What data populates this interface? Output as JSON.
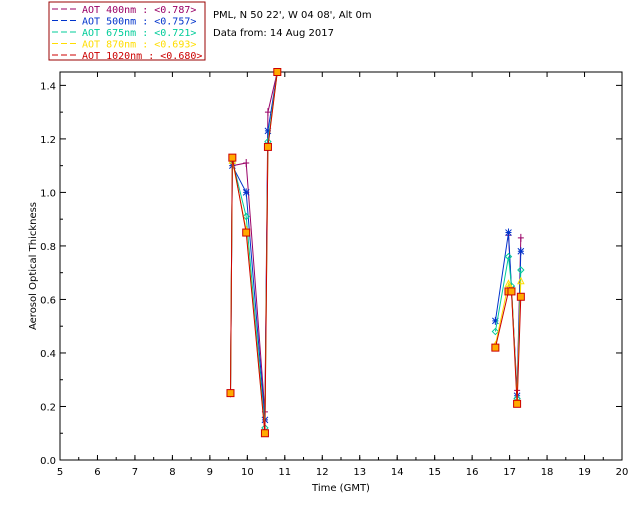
{
  "header": {
    "station": "PML, N 50 22', W 04 08', Alt 0m",
    "date_line": "Data from: 14 Aug 2017"
  },
  "chart_data": {
    "type": "line",
    "xlabel": "Time (GMT)",
    "ylabel": "Aerosol Optical Thickness",
    "xlim": [
      5,
      20
    ],
    "ylim": [
      0,
      1.45
    ],
    "x_ticks": [
      "5",
      "6",
      "7",
      "8",
      "9",
      "10",
      "11",
      "12",
      "13",
      "14",
      "15",
      "16",
      "17",
      "18",
      "19",
      "20"
    ],
    "y_ticks": [
      "0.0",
      "0.2",
      "0.4",
      "0.6",
      "0.8",
      "1.0",
      "1.2",
      "1.4"
    ],
    "legend_position": "top-left (outside)",
    "series": [
      {
        "name": "AOT  400nm : <0.787>",
        "color": "#990066",
        "marker": "plus",
        "points": [
          [
            9.55,
            0.25
          ],
          [
            9.6,
            1.1
          ],
          [
            9.97,
            1.11
          ],
          [
            10.47,
            0.18
          ],
          [
            10.55,
            1.3
          ],
          [
            10.8,
            1.45
          ],
          [
            16.97,
            0.84
          ],
          [
            17.05,
            0.63
          ],
          [
            17.2,
            0.26
          ],
          [
            17.3,
            0.83
          ]
        ]
      },
      {
        "name": "AOT  500nm : <0.757>",
        "color": "#0033cc",
        "marker": "asterisk",
        "points": [
          [
            9.55,
            0.25
          ],
          [
            9.6,
            1.1
          ],
          [
            9.97,
            1.0
          ],
          [
            10.47,
            0.15
          ],
          [
            10.55,
            1.23
          ],
          [
            10.8,
            1.45
          ],
          [
            16.62,
            0.52
          ],
          [
            16.97,
            0.85
          ],
          [
            17.05,
            0.64
          ],
          [
            17.2,
            0.24
          ],
          [
            17.3,
            0.78
          ]
        ]
      },
      {
        "name": "AOT  675nm : <0.721>",
        "color": "#00cc99",
        "marker": "diamond",
        "points": [
          [
            9.55,
            0.25
          ],
          [
            9.6,
            1.12
          ],
          [
            9.97,
            0.91
          ],
          [
            10.47,
            0.12
          ],
          [
            10.55,
            1.19
          ],
          [
            10.8,
            1.45
          ],
          [
            16.62,
            0.48
          ],
          [
            16.97,
            0.76
          ],
          [
            17.05,
            0.65
          ],
          [
            17.2,
            0.23
          ],
          [
            17.3,
            0.71
          ]
        ]
      },
      {
        "name": "AOT  870nm : <0.693>",
        "color": "#ffdd00",
        "marker": "triangle",
        "points": [
          [
            9.55,
            0.25
          ],
          [
            9.6,
            1.12
          ],
          [
            9.97,
            0.86
          ],
          [
            10.47,
            0.1
          ],
          [
            10.55,
            1.17
          ],
          [
            10.8,
            1.45
          ],
          [
            16.62,
            0.43
          ],
          [
            16.97,
            0.66
          ],
          [
            17.05,
            0.64
          ],
          [
            17.2,
            0.22
          ],
          [
            17.3,
            0.67
          ]
        ]
      },
      {
        "name": "AOT 1020nm : <0.680>",
        "color": "#cc0000",
        "marker": "square",
        "points": [
          [
            9.55,
            0.25
          ],
          [
            9.6,
            1.13
          ],
          [
            9.97,
            0.85
          ],
          [
            10.47,
            0.1
          ],
          [
            10.55,
            1.17
          ],
          [
            10.8,
            1.45
          ],
          [
            16.62,
            0.42
          ],
          [
            16.97,
            0.63
          ],
          [
            17.05,
            0.63
          ],
          [
            17.2,
            0.21
          ],
          [
            17.3,
            0.61
          ]
        ]
      }
    ]
  }
}
